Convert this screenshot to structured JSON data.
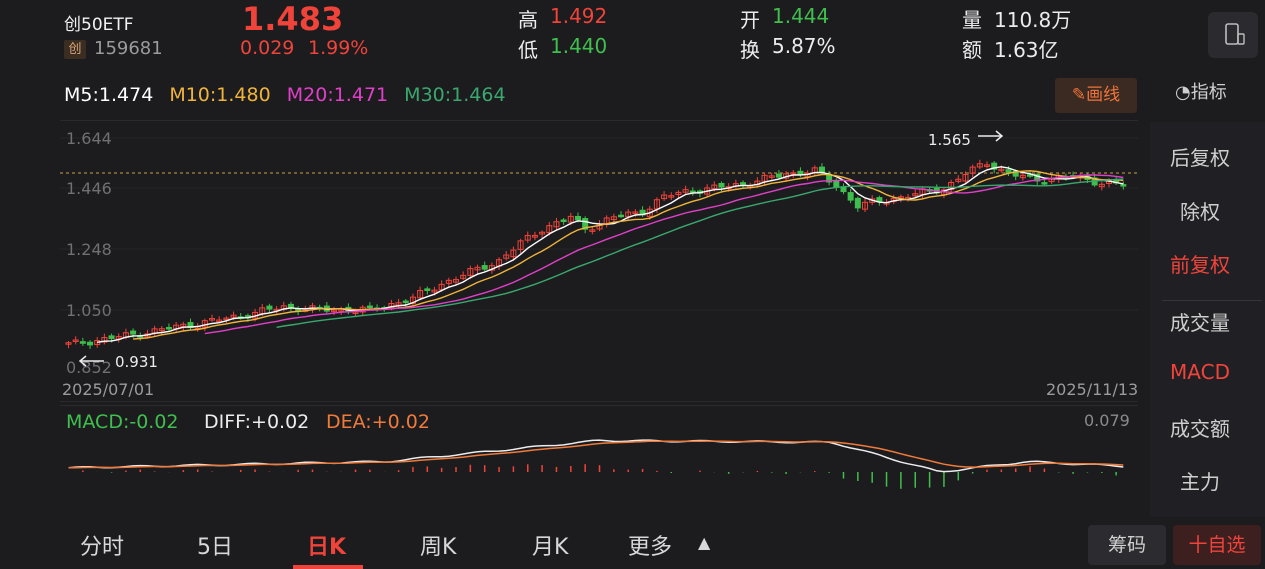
{
  "header": {
    "name": "创50ETF",
    "tag": "创",
    "code": "159681",
    "price": "1.483",
    "change_abs": "0.029",
    "change_pct": "1.99%",
    "high_label": "高",
    "high": "1.492",
    "low_label": "低",
    "low": "1.440",
    "open_label": "开",
    "open": "1.444",
    "turnover_label": "换",
    "turnover": "5.87%",
    "volume_label": "量",
    "volume": "110.8万",
    "amount_label": "额",
    "amount": "1.63亿"
  },
  "ma": {
    "m5": "M5:1.474",
    "m10": "M10:1.480",
    "m20": "M20:1.471",
    "m30": "M30:1.464",
    "colors": {
      "m5": "#ffffff",
      "m10": "#f0b43a",
      "m20": "#e040c8",
      "m30": "#3aa86e"
    }
  },
  "buttons": {
    "draw_line": "画线",
    "indicator": "指标",
    "chips": "筹码",
    "watchlist": "十自选"
  },
  "side_menu": [
    "后复权",
    "除权",
    "前复权",
    "成交量",
    "MACD",
    "成交额",
    "主力"
  ],
  "kchart": {
    "y_ticks": [
      "1.644",
      "1.446",
      "1.248",
      "1.050",
      "0.852"
    ],
    "start_date": "2025/07/01",
    "end_date": "2025/11/13",
    "max_label": "1.565",
    "min_label": "0.931"
  },
  "macd": {
    "macd_label": "MACD:-0.02",
    "diff_label": "DIFF:+0.02",
    "dea_label": "DEA:+0.02",
    "max_label": "0.079"
  },
  "tabs": [
    "分时",
    "5日",
    "日K",
    "周K",
    "月K",
    "更多"
  ],
  "colors": {
    "up": "#f0433a",
    "down": "#3fbf4d",
    "background": "#1c1c1f"
  }
}
